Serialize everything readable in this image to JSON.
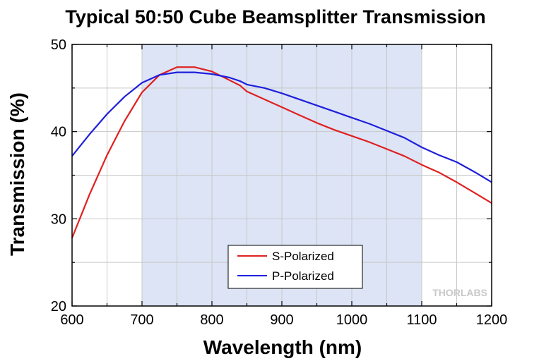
{
  "chart_data": {
    "type": "line",
    "title": "Typical 50:50 Cube Beamsplitter Transmission",
    "xlabel": "Wavelength (nm)",
    "ylabel": "Transmission (%)",
    "xlim": [
      600,
      1200
    ],
    "ylim": [
      20,
      50
    ],
    "xticks": [
      600,
      700,
      800,
      900,
      1000,
      1100,
      1200
    ],
    "yticks": [
      20,
      30,
      40,
      50
    ],
    "grid": true,
    "shaded_range": [
      700,
      1100
    ],
    "legend_position": "bottom-center",
    "series": [
      {
        "name": "S-Polarized",
        "color": "#e02020",
        "x": [
          600,
          625,
          650,
          675,
          700,
          725,
          750,
          775,
          800,
          825,
          840,
          850,
          875,
          900,
          925,
          950,
          975,
          1000,
          1025,
          1050,
          1075,
          1100,
          1125,
          1150,
          1175,
          1200
        ],
        "values": [
          27.8,
          32.8,
          37.3,
          41.2,
          44.5,
          46.5,
          47.4,
          47.4,
          46.9,
          45.9,
          45.3,
          44.6,
          43.7,
          42.8,
          41.9,
          41.0,
          40.2,
          39.5,
          38.8,
          38.0,
          37.2,
          36.2,
          35.3,
          34.2,
          33.0,
          31.8
        ]
      },
      {
        "name": "P-Polarized",
        "color": "#1f1fdc",
        "x": [
          600,
          625,
          650,
          675,
          700,
          725,
          750,
          775,
          800,
          825,
          840,
          850,
          875,
          900,
          925,
          950,
          975,
          1000,
          1025,
          1050,
          1075,
          1100,
          1125,
          1150,
          1175,
          1200
        ],
        "values": [
          37.2,
          39.7,
          42.0,
          44.0,
          45.6,
          46.5,
          46.8,
          46.8,
          46.6,
          46.2,
          45.8,
          45.4,
          45.0,
          44.4,
          43.7,
          43.0,
          42.3,
          41.6,
          40.9,
          40.1,
          39.3,
          38.2,
          37.3,
          36.5,
          35.4,
          34.2
        ]
      }
    ]
  },
  "watermark": "THORLABS",
  "colors": {
    "shaded_region": "#dce4f5",
    "grid": "#c8c8c8",
    "frame": "#000000"
  }
}
